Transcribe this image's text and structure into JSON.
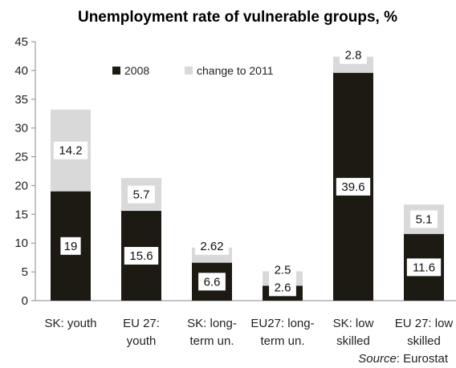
{
  "chart_data": {
    "type": "bar",
    "stacked": true,
    "title": "Unemployment rate of vulnerable groups, %",
    "categories": [
      [
        "SK: youth"
      ],
      [
        "EU 27:",
        "youth"
      ],
      [
        "SK: long-",
        "term un."
      ],
      [
        "EU27: long-",
        "term un."
      ],
      [
        "SK: low",
        "skilled"
      ],
      [
        "EU 27: low",
        "skilled"
      ]
    ],
    "series": [
      {
        "name": "2008",
        "color": "#1c1a12",
        "values": [
          19,
          15.6,
          6.6,
          2.6,
          39.6,
          11.6
        ],
        "labels": [
          "19",
          "15.6",
          "6.6",
          "2.6",
          "39.6",
          "11.6"
        ]
      },
      {
        "name": "change to 2011",
        "color": "#d9d9d9",
        "values": [
          14.2,
          5.7,
          2.62,
          2.5,
          2.8,
          5.1
        ],
        "labels": [
          "14.2",
          "5.7",
          "2.62",
          "2.5",
          "2.8",
          "5.1"
        ]
      }
    ],
    "ylim": [
      0,
      45
    ],
    "yticks": [
      0,
      5,
      10,
      15,
      20,
      25,
      30,
      35,
      40,
      45
    ],
    "grid": false,
    "legend": "top-center"
  },
  "source": {
    "label": "Source",
    "value": ": Eurostat"
  }
}
